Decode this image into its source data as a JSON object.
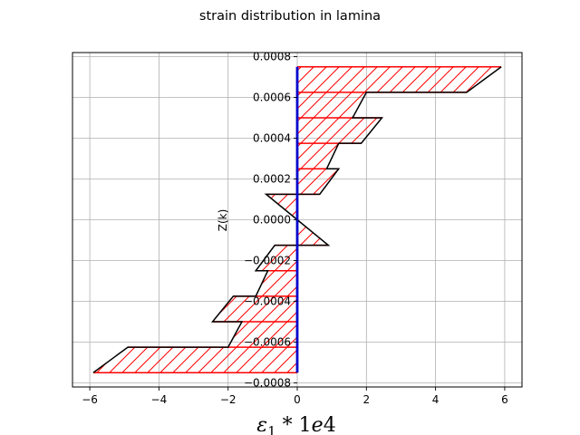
{
  "chart_data": {
    "type": "area",
    "title": "strain distribution in lamina",
    "xlabel": {
      "symbol": "ε",
      "subscript": "1",
      "suffix": " * ",
      "scale": "1",
      "scale_e": "e",
      "scale_exp": "4"
    },
    "ylabel": "Z(k)",
    "xlim": [
      -6.5,
      6.5
    ],
    "ylim": [
      -0.00082,
      0.00082
    ],
    "xticks": [
      -6,
      -4,
      -2,
      0,
      2,
      4,
      6
    ],
    "xtick_labels": [
      "−6",
      "−4",
      "−2",
      "0",
      "2",
      "4",
      "6"
    ],
    "yticks": [
      -0.0008,
      -0.0006,
      -0.0004,
      -0.0002,
      0.0,
      0.0002,
      0.0004,
      0.0006,
      0.0008
    ],
    "ytick_labels": [
      "−0.0008",
      "−0.0006",
      "−0.0004",
      "−0.0002",
      "0.0000",
      "0.0002",
      "0.0004",
      "0.0006",
      "0.0008"
    ],
    "grid": true,
    "ply_boundaries": [
      -0.00075,
      -0.000625,
      -0.0005,
      -0.000375,
      -0.00025,
      -0.000125,
      0.0,
      0.000125,
      0.00025,
      0.000375,
      0.0005,
      0.000625,
      0.00075
    ],
    "strain_profile": [
      [
        0,
        -0.00075
      ],
      [
        -5.9,
        -0.00075
      ],
      [
        -4.9,
        -0.000625
      ],
      [
        -2.0,
        -0.000625
      ],
      [
        -1.6,
        -0.0005
      ],
      [
        -2.45,
        -0.0005
      ],
      [
        -1.85,
        -0.000375
      ],
      [
        -1.2,
        -0.000375
      ],
      [
        -0.85,
        -0.00025
      ],
      [
        -1.2,
        -0.00025
      ],
      [
        -0.65,
        -0.000125
      ],
      [
        0.9,
        -0.000125
      ],
      [
        0,
        0.0
      ],
      [
        -0.9,
        0.000125
      ],
      [
        0.65,
        0.000125
      ],
      [
        1.2,
        0.00025
      ],
      [
        0.85,
        0.00025
      ],
      [
        1.2,
        0.000375
      ],
      [
        1.85,
        0.000375
      ],
      [
        2.45,
        0.0005
      ],
      [
        1.6,
        0.0005
      ],
      [
        2.0,
        0.000625
      ],
      [
        4.9,
        0.000625
      ],
      [
        5.9,
        0.00075
      ],
      [
        0,
        0.00075
      ]
    ],
    "colors": {
      "profile": "#000000",
      "hatch": "#ff0000",
      "axis_line": "#0000cc",
      "grid": "#b0b0b0"
    }
  }
}
